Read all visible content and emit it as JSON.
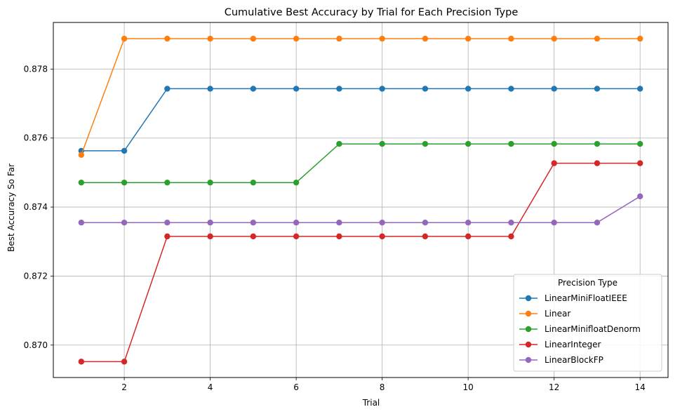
{
  "chart_data": {
    "type": "line",
    "title": "Cumulative Best Accuracy by Trial for Each Precision Type",
    "xlabel": "Trial",
    "ylabel": "Best Accuracy So Far",
    "xlim": [
      0.35,
      14.65
    ],
    "ylim": [
      0.86906,
      0.87935
    ],
    "xticks": [
      2,
      4,
      6,
      8,
      10,
      12,
      14
    ],
    "yticks": [
      0.87,
      0.872,
      0.874,
      0.876,
      0.878
    ],
    "ytick_labels": [
      "0.870",
      "0.872",
      "0.874",
      "0.876",
      "0.878"
    ],
    "grid": true,
    "legend": {
      "title": "Precision Type",
      "placement": "lower-right"
    },
    "x": [
      1,
      2,
      3,
      4,
      5,
      6,
      7,
      8,
      9,
      10,
      11,
      12,
      13,
      14
    ],
    "series": [
      {
        "name": "LinearMiniFloatIEEE",
        "color": "#1f77b4",
        "values": [
          0.87563,
          0.87563,
          0.87743,
          0.87743,
          0.87743,
          0.87743,
          0.87743,
          0.87743,
          0.87743,
          0.87743,
          0.87743,
          0.87743,
          0.87743,
          0.87743
        ]
      },
      {
        "name": "Linear",
        "color": "#ff7f0e",
        "values": [
          0.87551,
          0.87888,
          0.87888,
          0.87888,
          0.87888,
          0.87888,
          0.87888,
          0.87888,
          0.87888,
          0.87888,
          0.87888,
          0.87888,
          0.87888,
          0.87888
        ]
      },
      {
        "name": "LinearMinifloatDenorm",
        "color": "#2ca02c",
        "values": [
          0.87471,
          0.87471,
          0.87471,
          0.87471,
          0.87471,
          0.87471,
          0.87583,
          0.87583,
          0.87583,
          0.87583,
          0.87583,
          0.87583,
          0.87583,
          0.87583
        ]
      },
      {
        "name": "LinearInteger",
        "color": "#d62728",
        "values": [
          0.86952,
          0.86952,
          0.87315,
          0.87315,
          0.87315,
          0.87315,
          0.87315,
          0.87315,
          0.87315,
          0.87315,
          0.87315,
          0.87527,
          0.87527,
          0.87527
        ]
      },
      {
        "name": "LinearBlockFP",
        "color": "#9467bd",
        "values": [
          0.87355,
          0.87355,
          0.87355,
          0.87355,
          0.87355,
          0.87355,
          0.87355,
          0.87355,
          0.87355,
          0.87355,
          0.87355,
          0.87355,
          0.87355,
          0.87431
        ]
      }
    ]
  }
}
